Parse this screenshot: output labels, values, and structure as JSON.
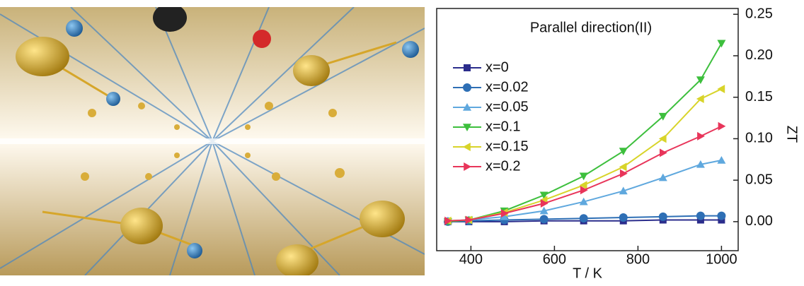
{
  "chart_data": {
    "type": "line",
    "title": "Parallel direction(II)",
    "xlabel": "T / K",
    "ylabel": "ZT",
    "x": [
      345,
      395,
      480,
      575,
      670,
      765,
      860,
      950,
      1000
    ],
    "xlim": [
      318,
      1040
    ],
    "xticks": [
      400,
      600,
      800,
      1000
    ],
    "ylim": [
      -0.035,
      0.257
    ],
    "yticks": [
      {
        "value": 0,
        "label": "0.00"
      },
      {
        "value": 0.05,
        "label": "0.05"
      },
      {
        "value": 0.1,
        "label": "0.10"
      },
      {
        "value": 0.15,
        "label": "0.15"
      },
      {
        "value": 0.2,
        "label": "0.20"
      },
      {
        "value": 0.25,
        "label": "0.25"
      }
    ],
    "y_axis_side": "right",
    "legend": "top-left",
    "series": [
      {
        "name": "x=0",
        "color": "#2b2d8c",
        "marker": "square",
        "values": [
          0,
          0,
          0,
          0.001,
          0.001,
          0.001,
          0.002,
          0.002,
          0.002
        ]
      },
      {
        "name": "x=0.02",
        "color": "#2e6fb5",
        "marker": "circle",
        "values": [
          0,
          0.001,
          0.002,
          0.003,
          0.004,
          0.005,
          0.006,
          0.007,
          0.007
        ]
      },
      {
        "name": "x=0.05",
        "color": "#5fa8de",
        "marker": "triangle-up",
        "values": [
          0.001,
          0.002,
          0.006,
          0.013,
          0.024,
          0.037,
          0.053,
          0.069,
          0.074
        ]
      },
      {
        "name": "x=0.1",
        "color": "#3dbf3d",
        "marker": "triangle-down",
        "values": [
          0,
          0.002,
          0.013,
          0.032,
          0.055,
          0.085,
          0.127,
          0.171,
          0.215
        ]
      },
      {
        "name": "x=0.15",
        "color": "#d8d42a",
        "marker": "triangle-left",
        "values": [
          0.001,
          0.002,
          0.011,
          0.026,
          0.044,
          0.066,
          0.1,
          0.148,
          0.16
        ]
      },
      {
        "name": "x=0.2",
        "color": "#e8355a",
        "marker": "triangle-right",
        "values": [
          0.001,
          0.002,
          0.01,
          0.022,
          0.038,
          0.058,
          0.083,
          0.103,
          0.115
        ]
      }
    ]
  }
}
